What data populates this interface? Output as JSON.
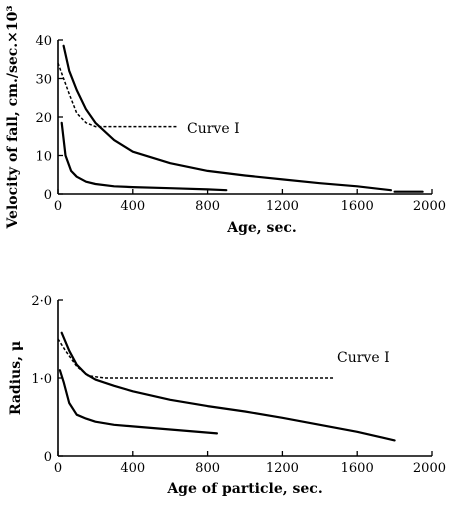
{
  "chart_data": [
    {
      "type": "line",
      "title": "",
      "xlabel": "Age, sec.",
      "ylabel": "Velocity of fall, cm./sec.×10³",
      "xlim": [
        0,
        2000
      ],
      "ylim": [
        0,
        40
      ],
      "xticks": [
        "0",
        "400",
        "800",
        "1200",
        "1600",
        "2000"
      ],
      "yticks": [
        "0",
        "10",
        "20",
        "30",
        "40"
      ],
      "annotation": "Curve I",
      "series": [
        {
          "style": "solid",
          "x": [
            30,
            60,
            100,
            150,
            200,
            300,
            400,
            600,
            800,
            1000,
            1200,
            1400,
            1600,
            1780
          ],
          "y": [
            38.5,
            32,
            27,
            22,
            18.5,
            14,
            11,
            8,
            6,
            4.8,
            3.8,
            2.8,
            2,
            1
          ]
        },
        {
          "style": "solid",
          "x": [
            20,
            40,
            70,
            100,
            150,
            200,
            300,
            400,
            600,
            800,
            900
          ],
          "y": [
            18.5,
            10,
            6,
            4.5,
            3.2,
            2.6,
            2,
            1.8,
            1.5,
            1.2,
            1
          ]
        },
        {
          "style": "dashed",
          "x": [
            0,
            30,
            60,
            100,
            150,
            200,
            300,
            500,
            640
          ],
          "y": [
            34,
            30,
            26,
            21,
            18.5,
            17.5,
            17.5,
            17.5,
            17.5
          ]
        },
        {
          "style": "solid",
          "x": [
            1800,
            1950
          ],
          "y": [
            0.6,
            0.6
          ]
        }
      ]
    },
    {
      "type": "line",
      "title": "",
      "xlabel": "Age of particle, sec.",
      "ylabel": "Radius, μ",
      "xlim": [
        0,
        2000
      ],
      "ylim": [
        0,
        2.0
      ],
      "xticks": [
        "0",
        "400",
        "800",
        "1200",
        "1600",
        "2000"
      ],
      "yticks": [
        "0",
        "1·0",
        "2·0"
      ],
      "annotation": "Curve I",
      "series": [
        {
          "style": "solid",
          "x": [
            20,
            60,
            100,
            150,
            200,
            300,
            400,
            600,
            800,
            1000,
            1200,
            1400,
            1600,
            1800
          ],
          "y": [
            1.58,
            1.35,
            1.17,
            1.05,
            0.98,
            0.9,
            0.83,
            0.72,
            0.64,
            0.57,
            0.49,
            0.4,
            0.31,
            0.2
          ]
        },
        {
          "style": "solid",
          "x": [
            10,
            30,
            60,
            100,
            150,
            200,
            300,
            400,
            600,
            850
          ],
          "y": [
            1.1,
            0.95,
            0.68,
            0.53,
            0.48,
            0.44,
            0.4,
            0.38,
            0.34,
            0.29
          ]
        },
        {
          "style": "dashed",
          "x": [
            0,
            40,
            100,
            160,
            250,
            400,
            800,
            1200,
            1480
          ],
          "y": [
            1.5,
            1.35,
            1.15,
            1.03,
            1.0,
            1.0,
            1.0,
            1.0,
            1.0
          ]
        }
      ]
    }
  ]
}
